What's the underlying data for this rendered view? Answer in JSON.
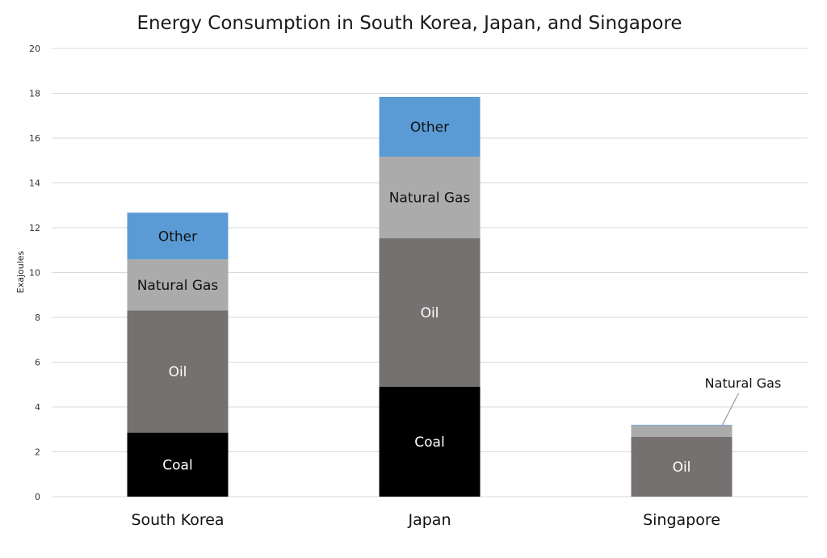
{
  "chart_data": {
    "type": "bar",
    "stacked": true,
    "title": "Energy Consumption in South Korea, Japan, and Singapore",
    "xlabel": "",
    "ylabel": "Exajoules",
    "ylim": [
      0,
      20
    ],
    "yticks": [
      0,
      2,
      4,
      6,
      8,
      10,
      12,
      14,
      16,
      18,
      20
    ],
    "grid": true,
    "categories": [
      "South Korea",
      "Japan",
      "Singapore"
    ],
    "series": [
      {
        "name": "Coal",
        "color": "#000000",
        "label_color": "#ffffff",
        "values": [
          2.86,
          4.9,
          0
        ]
      },
      {
        "name": "Oil",
        "color": "#757170",
        "label_color": "#ffffff",
        "values": [
          5.45,
          6.63,
          2.67
        ]
      },
      {
        "name": "Natural Gas",
        "color": "#ababab",
        "label_color": "#111111",
        "values": [
          2.28,
          3.64,
          0.5
        ]
      },
      {
        "name": "Other",
        "color": "#5b9bd5",
        "label_color": "#111111",
        "values": [
          2.08,
          2.67,
          0.03
        ]
      }
    ],
    "annotations": [
      {
        "text": "Natural Gas",
        "category": "Singapore",
        "series": "Natural Gas",
        "leader_line": true
      }
    ]
  }
}
